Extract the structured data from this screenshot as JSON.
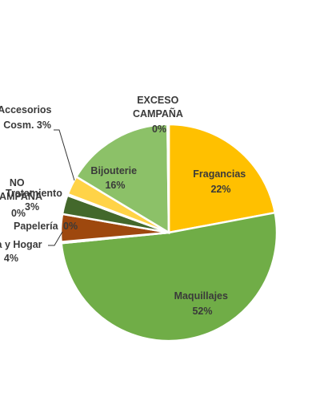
{
  "chart_data": {
    "type": "pie",
    "title": "",
    "slices": [
      {
        "label": "Fragancias",
        "pct_label": "22%",
        "value": 22.5,
        "color": "#FFC000"
      },
      {
        "label": "Maquillajes",
        "pct_label": "52%",
        "value": 52.4,
        "color": "#70AD47"
      },
      {
        "label": "Papelería",
        "pct_label": "0%",
        "value": 0.2,
        "color": "#5B9BD5"
      },
      {
        "label": "a y Hogar",
        "pct_label": "4%",
        "value": 4.2,
        "color": "#9E480E"
      },
      {
        "label": "Tratamiento",
        "pct_label": "3%",
        "value": 2.9,
        "color": "#43682B"
      },
      {
        "label": "NO CAMPAÑA",
        "pct_label": "0%",
        "value": 0.2,
        "color": "#A5A5A5"
      },
      {
        "label": "Accesorios Cosm.",
        "pct_label": "3%",
        "value": 2.9,
        "color": "#FFD347"
      },
      {
        "label": "Bijouterie",
        "pct_label": "16%",
        "value": 16.5,
        "color": "#8CC168"
      },
      {
        "label": "EXCESO CAMPAÑA",
        "pct_label": "0%",
        "value": 0.2,
        "color": "#264478"
      }
    ],
    "legend": "none"
  }
}
